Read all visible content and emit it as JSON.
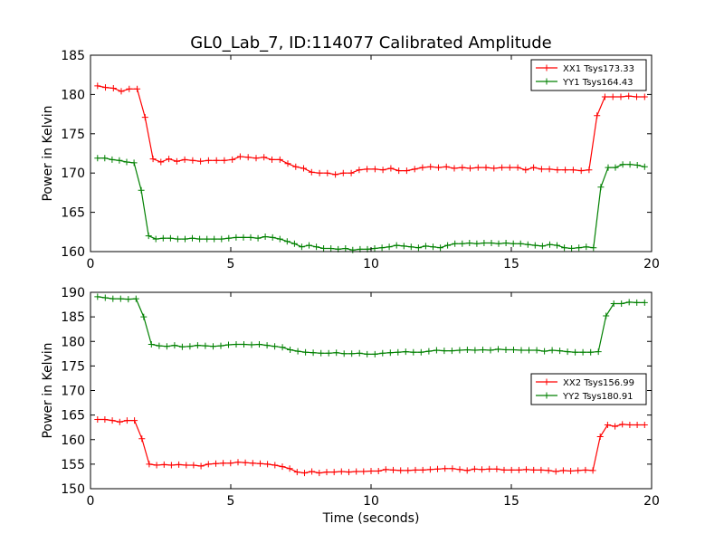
{
  "title": "GL0_Lab_7, ID:114077 Calibrated Amplitude",
  "charts": [
    {
      "type": "line",
      "ylabel": "Power in Kelvin",
      "xlabel": "",
      "xlim": [
        0,
        20
      ],
      "ylim": [
        160,
        185
      ],
      "xticks": [
        "0",
        "5",
        "10",
        "15",
        "20"
      ],
      "yticks": [
        "160",
        "165",
        "170",
        "175",
        "180",
        "185"
      ],
      "legend_position": "upper-right",
      "series": [
        {
          "name": "XX1 Tsys173.33",
          "color": "#ff0000",
          "values": [
            181.1,
            180.9,
            180.8,
            180.4,
            180.7,
            180.7,
            177.1,
            171.8,
            171.4,
            171.8,
            171.5,
            171.7,
            171.6,
            171.5,
            171.6,
            171.6,
            171.6,
            171.7,
            172.1,
            172.0,
            171.9,
            172.0,
            171.7,
            171.7,
            171.2,
            170.8,
            170.6,
            170.1,
            170.0,
            170.0,
            169.8,
            170.0,
            170.0,
            170.4,
            170.5,
            170.5,
            170.4,
            170.6,
            170.3,
            170.3,
            170.5,
            170.7,
            170.8,
            170.7,
            170.8,
            170.6,
            170.7,
            170.6,
            170.7,
            170.7,
            170.6,
            170.7,
            170.7,
            170.7,
            170.4,
            170.7,
            170.5,
            170.5,
            170.4,
            170.4,
            170.4,
            170.3,
            170.4,
            177.3,
            179.7,
            179.7,
            179.7,
            179.8,
            179.7,
            179.7
          ]
        },
        {
          "name": "YY1 Tsys164.43",
          "color": "#008000",
          "values": [
            171.9,
            171.9,
            171.7,
            171.6,
            171.4,
            171.3,
            167.8,
            162.0,
            161.6,
            161.7,
            161.7,
            161.6,
            161.6,
            161.7,
            161.6,
            161.6,
            161.6,
            161.6,
            161.7,
            161.8,
            161.8,
            161.8,
            161.7,
            161.9,
            161.8,
            161.6,
            161.3,
            161.0,
            160.6,
            160.8,
            160.6,
            160.4,
            160.4,
            160.3,
            160.4,
            160.2,
            160.3,
            160.3,
            160.4,
            160.5,
            160.6,
            160.8,
            160.7,
            160.6,
            160.5,
            160.7,
            160.6,
            160.5,
            160.8,
            161.0,
            161.0,
            161.1,
            161.0,
            161.1,
            161.1,
            161.0,
            161.1,
            161.0,
            161.0,
            160.9,
            160.8,
            160.7,
            160.9,
            160.8,
            160.5,
            160.4,
            160.5,
            160.6,
            160.5,
            168.2,
            170.7,
            170.7,
            171.1,
            171.1,
            171.0,
            170.8
          ]
        }
      ]
    },
    {
      "type": "line",
      "ylabel": "Power in Kelvin",
      "xlabel": "Time (seconds)",
      "xlim": [
        0,
        20
      ],
      "ylim": [
        150,
        190
      ],
      "xticks": [
        "0",
        "5",
        "10",
        "15",
        "20"
      ],
      "yticks": [
        "150",
        "155",
        "160",
        "165",
        "170",
        "175",
        "180",
        "185",
        "190"
      ],
      "legend_position": "right",
      "series": [
        {
          "name": "XX2 Tsys156.99",
          "color": "#ff0000",
          "values": [
            164.1,
            164.1,
            163.9,
            163.6,
            163.9,
            163.9,
            160.2,
            155.0,
            154.8,
            154.9,
            154.8,
            154.9,
            154.8,
            154.8,
            154.6,
            155.0,
            155.1,
            155.2,
            155.2,
            155.4,
            155.3,
            155.2,
            155.1,
            155.0,
            154.8,
            154.5,
            154.1,
            153.4,
            153.2,
            153.5,
            153.2,
            153.4,
            153.4,
            153.5,
            153.4,
            153.5,
            153.5,
            153.6,
            153.6,
            153.9,
            153.8,
            153.7,
            153.7,
            153.8,
            153.8,
            153.9,
            154.0,
            154.1,
            154.1,
            153.9,
            153.7,
            154.0,
            153.9,
            154.0,
            154.0,
            153.8,
            153.8,
            153.8,
            153.9,
            153.8,
            153.8,
            153.7,
            153.5,
            153.7,
            153.6,
            153.7,
            153.8,
            153.7,
            160.6,
            163.0,
            162.7,
            163.1,
            163.0,
            163.0,
            163.0
          ]
        },
        {
          "name": "YY2 Tsys180.91",
          "color": "#008000",
          "values": [
            189.1,
            188.9,
            188.7,
            188.7,
            188.6,
            188.7,
            185.0,
            179.4,
            179.1,
            179.0,
            179.2,
            178.9,
            179.0,
            179.2,
            179.1,
            179.0,
            179.1,
            179.3,
            179.4,
            179.4,
            179.3,
            179.4,
            179.2,
            179.0,
            178.8,
            178.3,
            178.0,
            177.8,
            177.7,
            177.6,
            177.6,
            177.7,
            177.5,
            177.5,
            177.6,
            177.4,
            177.4,
            177.6,
            177.7,
            177.8,
            177.9,
            177.8,
            177.8,
            178.0,
            178.2,
            178.1,
            178.1,
            178.2,
            178.3,
            178.2,
            178.3,
            178.2,
            178.4,
            178.3,
            178.3,
            178.2,
            178.2,
            178.2,
            178.0,
            178.2,
            178.1,
            177.9,
            177.8,
            177.8,
            177.8,
            177.9,
            185.2,
            187.7,
            187.7,
            188.0,
            187.9,
            187.9
          ]
        }
      ]
    }
  ]
}
